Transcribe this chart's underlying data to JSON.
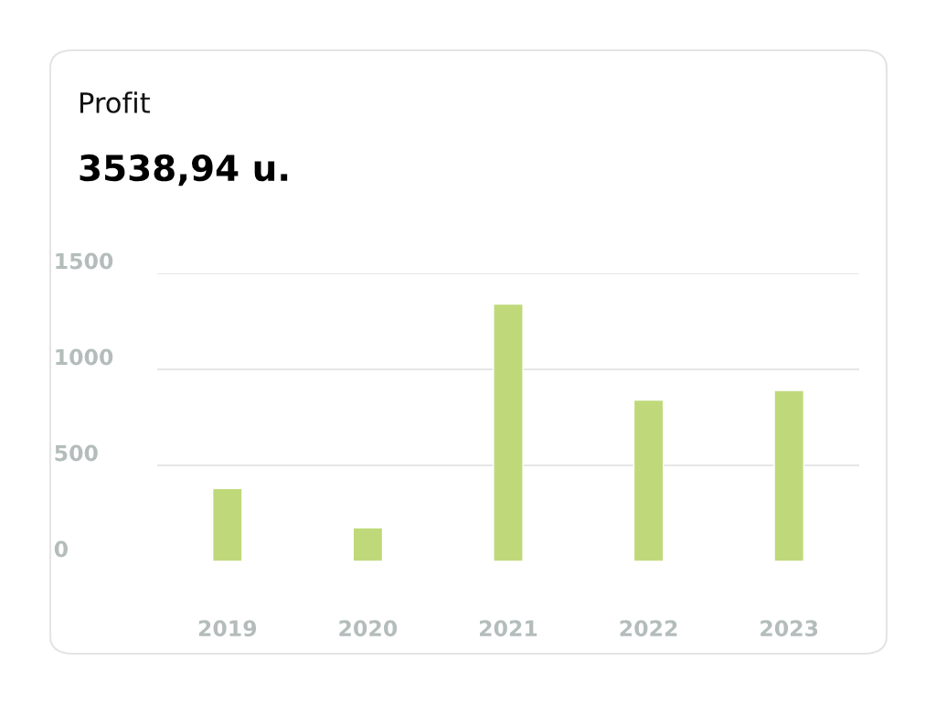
{
  "chart_data": {
    "type": "bar",
    "title": "Profit",
    "subtitle": "3538,94 u.",
    "categories": [
      "2019",
      "2020",
      "2021",
      "2022",
      "2023"
    ],
    "values": [
      380,
      175,
      1340,
      840,
      890
    ],
    "color": "#bfd97a",
    "ylim": [
      0,
      1500
    ],
    "yticks": [
      0,
      500,
      1000,
      1500
    ],
    "grid": "y"
  }
}
